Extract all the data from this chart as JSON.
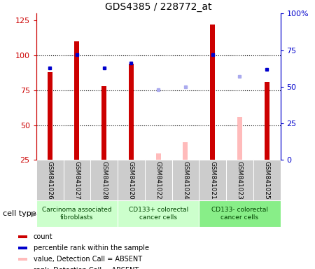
{
  "title": "GDS4385 / 228772_at",
  "samples": [
    "GSM841026",
    "GSM841027",
    "GSM841028",
    "GSM841020",
    "GSM841022",
    "GSM841024",
    "GSM841021",
    "GSM841023",
    "GSM841025"
  ],
  "count_values": [
    88,
    110,
    78,
    94,
    null,
    null,
    122,
    null,
    81
  ],
  "count_absent_values": [
    null,
    null,
    null,
    null,
    30,
    38,
    null,
    56,
    null
  ],
  "rank_values": [
    63,
    72,
    63,
    66,
    null,
    null,
    72,
    null,
    62
  ],
  "rank_absent_values": [
    null,
    null,
    null,
    null,
    48,
    50,
    null,
    57,
    null
  ],
  "ylim_left": [
    25,
    130
  ],
  "ylim_right": [
    0,
    100
  ],
  "yticks_left": [
    25,
    50,
    75,
    100,
    125
  ],
  "ytick_labels_right": [
    "0",
    "25",
    "50",
    "75",
    "100%"
  ],
  "bar_width": 0.18,
  "count_color": "#cc0000",
  "count_absent_color": "#ffbbbb",
  "rank_color": "#0000cc",
  "rank_absent_color": "#aaaaee",
  "legend_items": [
    {
      "color": "#cc0000",
      "label": "count"
    },
    {
      "color": "#0000cc",
      "label": "percentile rank within the sample"
    },
    {
      "color": "#ffbbbb",
      "label": "value, Detection Call = ABSENT"
    },
    {
      "color": "#aaaaee",
      "label": "rank, Detection Call = ABSENT"
    }
  ],
  "cell_groups": [
    {
      "label": "Carcinoma associated\nfibroblasts",
      "start": 0,
      "end": 3,
      "color": "#ccffcc"
    },
    {
      "label": "CD133+ colorectal\ncancer cells",
      "start": 3,
      "end": 6,
      "color": "#ccffcc"
    },
    {
      "label": "CD133- colorectal\ncancer cells",
      "start": 6,
      "end": 9,
      "color": "#88ee88"
    }
  ]
}
